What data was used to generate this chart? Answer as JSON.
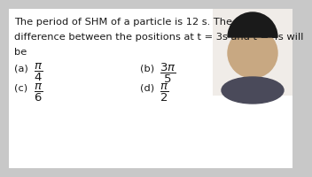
{
  "bg_color": "#c8c8c8",
  "text_color": "#1a1a1a",
  "title_line1": "The period of SHM of a particle is 12 s. The phase",
  "title_line2": "difference between the positions at t = 3s and t = 4s will",
  "title_line3": "be",
  "opt_a_label": "(a)",
  "opt_a_frac": "$\\dfrac{\\pi}{4}$",
  "opt_b_label": "(b)",
  "opt_b_frac": "$\\dfrac{3\\pi}{5}$",
  "opt_c_label": "(c)",
  "opt_c_frac": "$\\dfrac{\\pi}{6}$",
  "opt_d_label": "(d)",
  "opt_d_frac": "$\\dfrac{\\pi}{2}$",
  "font_size_text": 8.2,
  "font_size_opts": 9.5,
  "photo_bg": "#f0ece8"
}
